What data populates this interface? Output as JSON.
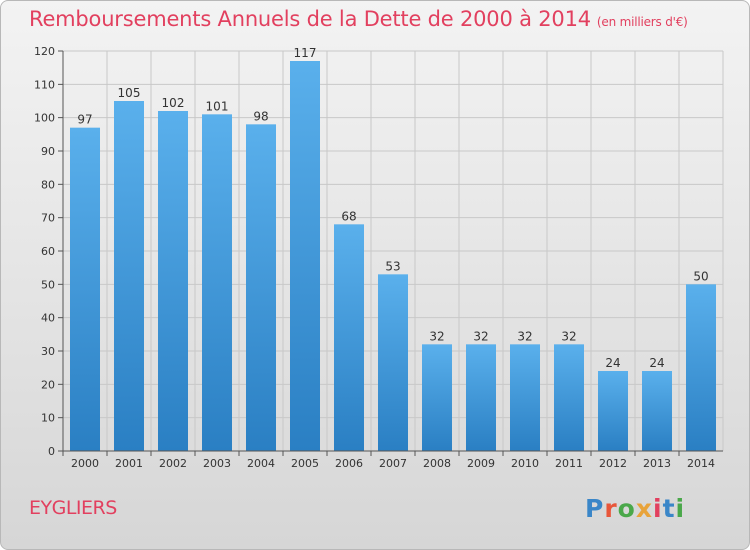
{
  "title": "Remboursements Annuels de la Dette de 2000 à 2014",
  "unit": "(en milliers d'€)",
  "commune": "EYGLIERS",
  "logo_text": "Proxiti",
  "colors": {
    "title": "#e2405f",
    "bar_top": "#5ab0ec",
    "bar_bottom": "#2a7fc3",
    "grid": "#c8c8c8"
  },
  "chart_data": {
    "type": "bar",
    "title": "Remboursements Annuels de la Dette de 2000 à 2014",
    "ylabel": "en milliers d'€",
    "xlabel": "",
    "ylim": [
      0,
      120
    ],
    "yticks": [
      0,
      10,
      20,
      30,
      40,
      50,
      60,
      70,
      80,
      90,
      100,
      110,
      120
    ],
    "categories": [
      "2000",
      "2001",
      "2002",
      "2003",
      "2004",
      "2005",
      "2006",
      "2007",
      "2008",
      "2009",
      "2010",
      "2011",
      "2012",
      "2013",
      "2014"
    ],
    "values": [
      97,
      105,
      102,
      101,
      98,
      117,
      68,
      53,
      32,
      32,
      32,
      32,
      24,
      24,
      50
    ],
    "grid": true
  }
}
